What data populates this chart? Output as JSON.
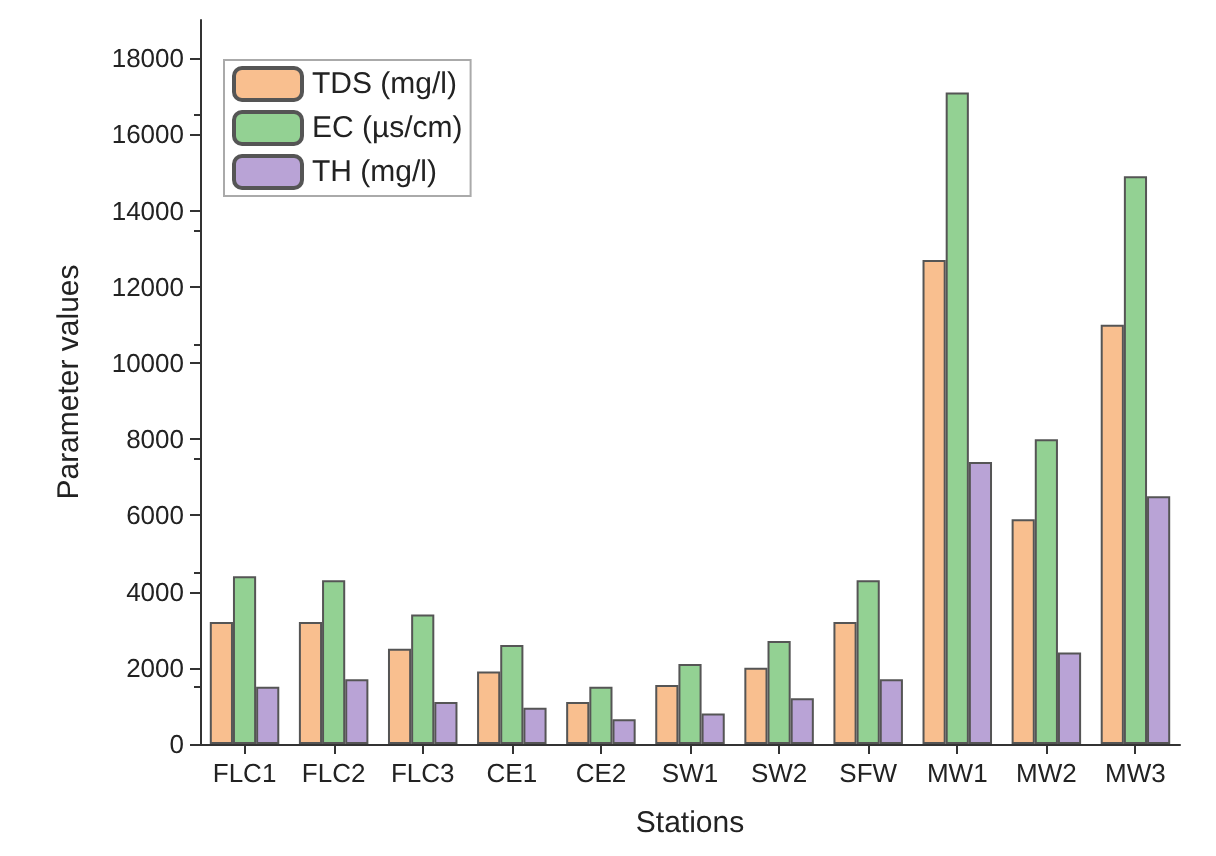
{
  "chart_data": {
    "type": "bar",
    "xlabel": "Stations",
    "ylabel": "Parameter values",
    "categories": [
      "FLC1",
      "FLC2",
      "FLC3",
      "CE1",
      "CE2",
      "SW1",
      "SW2",
      "SFW",
      "MW1",
      "MW2",
      "MW3"
    ],
    "series": [
      {
        "name": "TDS (mg/l)",
        "color": "#f9bf8f",
        "values": [
          3200,
          3200,
          2500,
          1900,
          1100,
          1550,
          2000,
          3200,
          12700,
          5900,
          11000
        ]
      },
      {
        "name": "EC (µs/cm)",
        "color": "#93d193",
        "values": [
          4400,
          4300,
          3400,
          2600,
          1500,
          2100,
          2700,
          4300,
          17100,
          8000,
          14900
        ]
      },
      {
        "name": "TH (mg/l)",
        "color": "#b9a3d6",
        "values": [
          1500,
          1700,
          1100,
          950,
          650,
          800,
          1200,
          1700,
          7400,
          2400,
          6500
        ]
      }
    ],
    "ylim": [
      0,
      19000
    ],
    "yticks": [
      0,
      2000,
      4000,
      6000,
      8000,
      10000,
      12000,
      14000,
      16000,
      18000
    ],
    "grid": false,
    "legend": "top left"
  }
}
